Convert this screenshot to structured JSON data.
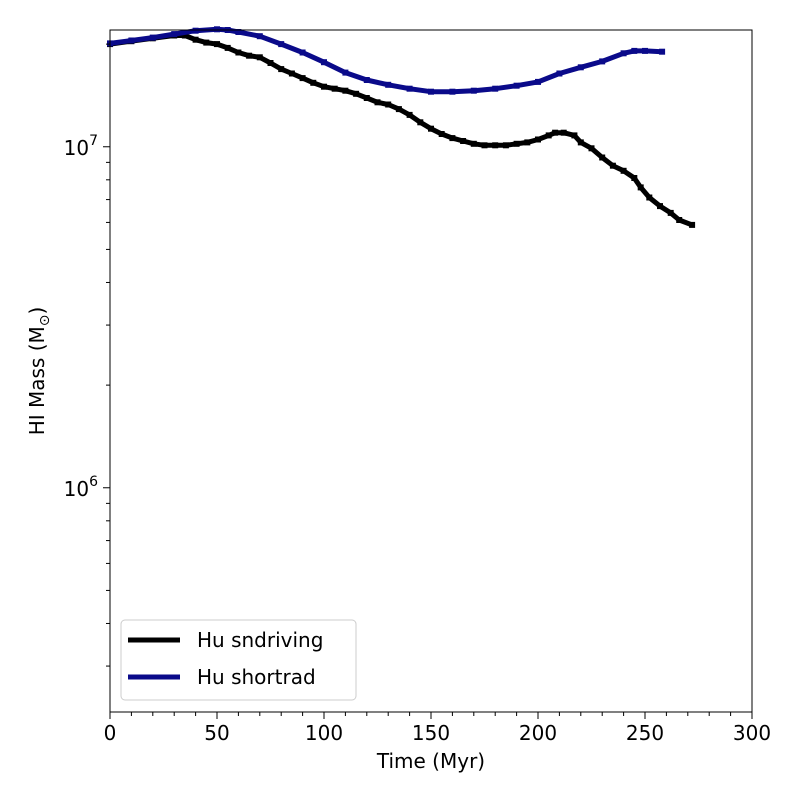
{
  "chart_data": {
    "type": "line",
    "xlabel": "Time (Myr)",
    "ylabel": "HI Mass (M",
    "ylabel_symbol": "⊙",
    "ylabel_close": ")",
    "xlim": [
      0,
      300
    ],
    "ylim": [
      220000,
      22000000
    ],
    "yscale": "log",
    "x_ticks": [
      "0",
      "50",
      "100",
      "150",
      "200",
      "250",
      "300"
    ],
    "y_ticks": [
      {
        "base": "10",
        "exp": "6",
        "value": 1000000
      },
      {
        "base": "10",
        "exp": "7",
        "value": 10000000
      }
    ],
    "grid": false,
    "legend_position": "lower left",
    "series": [
      {
        "name": "Hu sndriving",
        "color": "#000000",
        "x": [
          0,
          10,
          20,
          30,
          35,
          40,
          45,
          50,
          55,
          60,
          65,
          70,
          75,
          80,
          85,
          90,
          95,
          100,
          105,
          110,
          115,
          120,
          125,
          130,
          135,
          140,
          145,
          150,
          155,
          160,
          165,
          170,
          175,
          180,
          185,
          190,
          195,
          200,
          205,
          208,
          212,
          217,
          220,
          225,
          230,
          235,
          240,
          245,
          248,
          252,
          257,
          262,
          266,
          272
        ],
        "values": [
          20000000,
          20400000,
          20800000,
          21200000,
          21200000,
          20600000,
          20200000,
          20000000,
          19500000,
          18900000,
          18500000,
          18300000,
          17600000,
          16900000,
          16400000,
          15900000,
          15400000,
          15000000,
          14800000,
          14600000,
          14300000,
          13900000,
          13500000,
          13300000,
          12900000,
          12400000,
          11800000,
          11300000,
          10900000,
          10600000,
          10400000,
          10200000,
          10100000,
          10100000,
          10100000,
          10200000,
          10300000,
          10500000,
          10800000,
          11000000,
          11000000,
          10800000,
          10300000,
          9900000,
          9300000,
          8800000,
          8500000,
          8100000,
          7600000,
          7100000,
          6700000,
          6400000,
          6100000,
          5900000
        ]
      },
      {
        "name": "Hu shortrad",
        "color": "#0a0a8a",
        "x": [
          0,
          10,
          20,
          30,
          40,
          50,
          55,
          60,
          70,
          80,
          90,
          100,
          110,
          120,
          130,
          140,
          150,
          160,
          170,
          180,
          190,
          200,
          210,
          220,
          230,
          240,
          245,
          250,
          258
        ],
        "values": [
          20100000,
          20500000,
          20900000,
          21400000,
          21900000,
          22100000,
          22000000,
          21700000,
          21100000,
          20000000,
          18900000,
          17700000,
          16500000,
          15700000,
          15200000,
          14800000,
          14500000,
          14500000,
          14600000,
          14800000,
          15100000,
          15500000,
          16400000,
          17100000,
          17800000,
          18800000,
          19100000,
          19100000,
          19000000
        ]
      }
    ]
  }
}
